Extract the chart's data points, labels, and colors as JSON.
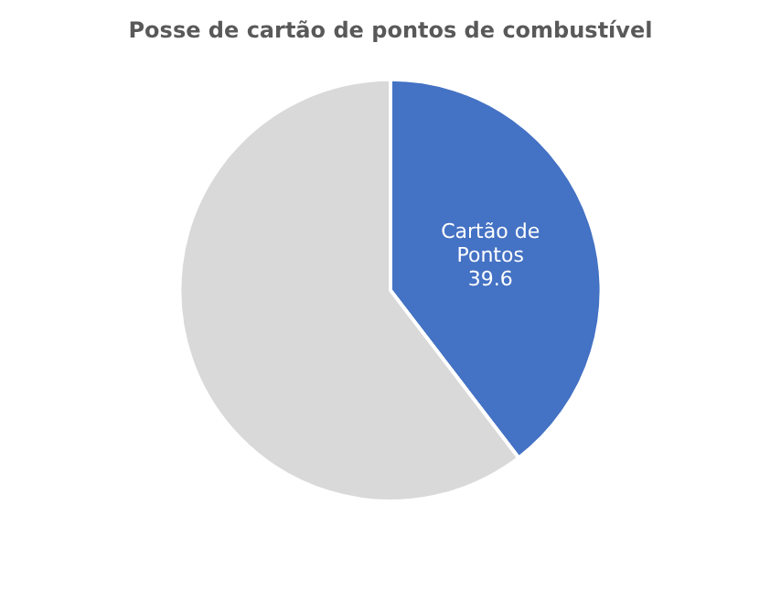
{
  "chart_data": {
    "type": "pie",
    "title": "Posse de cartão de pontos de combustível",
    "categories": [
      "Cartão de Pontos",
      null
    ],
    "values": [
      39.6,
      60.4
    ],
    "colors": [
      "#4472c4",
      "#d9d9d9"
    ],
    "value_labels": [
      "39.6",
      null
    ],
    "legend": false
  }
}
